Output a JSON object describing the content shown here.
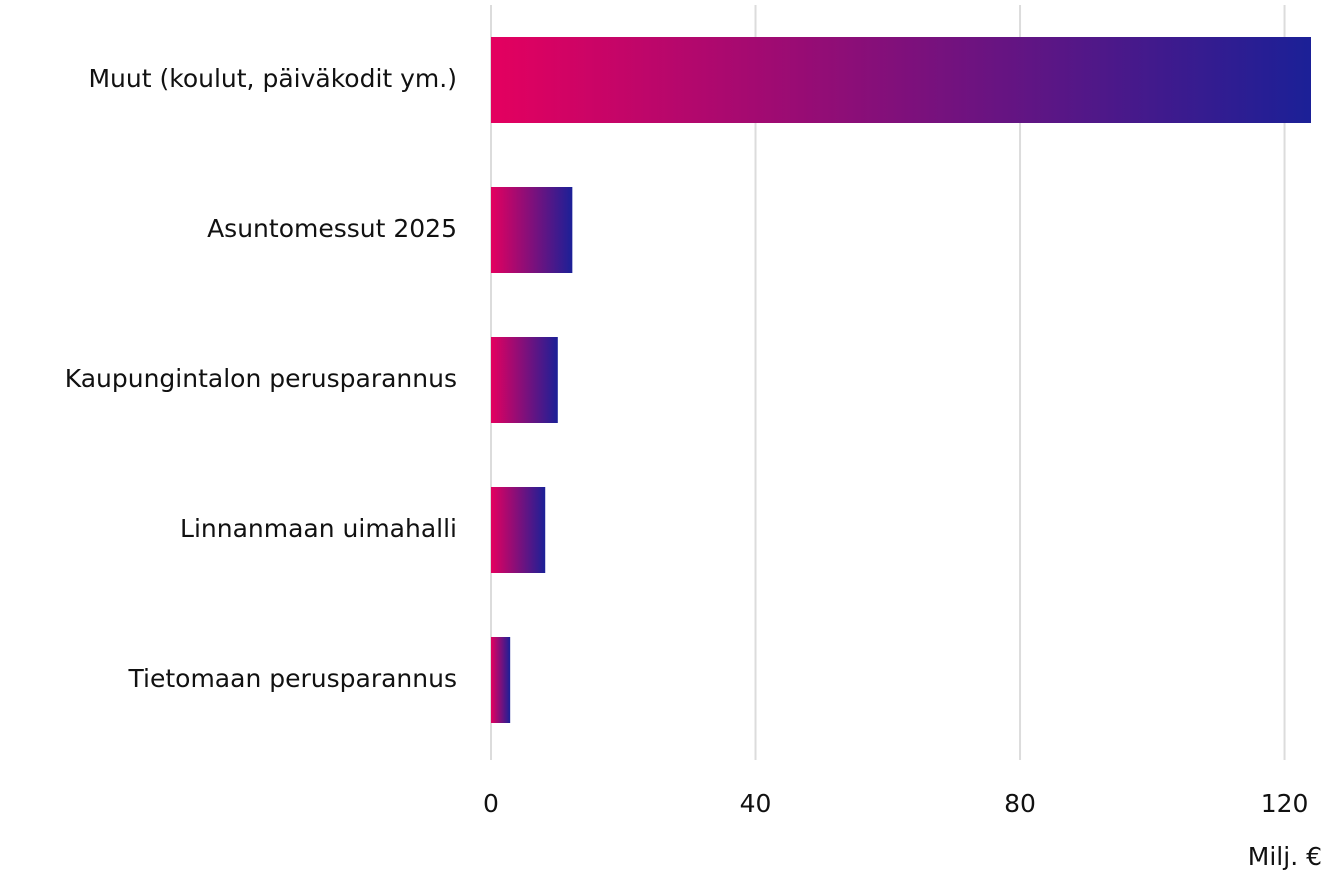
{
  "chart_data": {
    "type": "barh",
    "categories": [
      "Muut (koulut, päiväkodit ym.)",
      "Asuntomessut 2025",
      "Kaupungintalon perusparannus",
      "Linnanmaan uimahalli",
      "Tietomaan perusparannus"
    ],
    "values": [
      124,
      12.3,
      10.1,
      8.2,
      2.9
    ],
    "gradient": [
      "#e4005f",
      "#1b2097"
    ],
    "xlim": [
      0,
      124
    ],
    "xticks": [
      0,
      40,
      80,
      120
    ],
    "x_label": "Milj. €",
    "grid": true
  }
}
